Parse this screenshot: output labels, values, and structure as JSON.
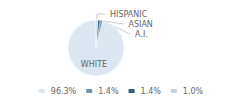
{
  "chart_data": {
    "type": "pie",
    "categories": [
      "WHITE",
      "A.I.",
      "ASIAN",
      "HISPANIC"
    ],
    "values": [
      96.3,
      1.4,
      1.4,
      1.0
    ],
    "value_labels": [
      "96.3%",
      "1.4%",
      "1.4%",
      "1.0%"
    ],
    "colors": [
      "#dce6f0",
      "#7096b0",
      "#2e5f85",
      "#c8d4de"
    ],
    "legend": "bottom"
  }
}
